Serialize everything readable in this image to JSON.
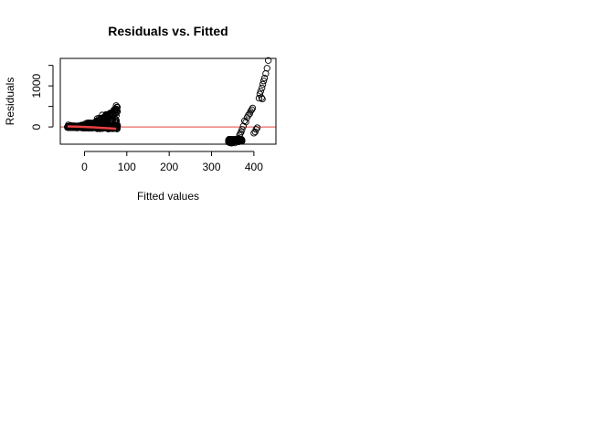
{
  "chart_data": {
    "type": "scatter",
    "title": "Residuals vs. Fitted",
    "xlabel": "Fitted values",
    "ylabel": "Residuals",
    "xlim": [
      -57,
      452
    ],
    "ylim": [
      -420,
      1670
    ],
    "x_ticks": [
      0,
      100,
      200,
      300,
      400
    ],
    "y_ticks": [
      0,
      1000
    ],
    "y_minor_ticks": [
      0,
      500,
      1000,
      1500
    ],
    "reference_line": {
      "y": 0,
      "color": "#e8403f"
    },
    "smooth_color": "#e8403f",
    "marker": "open-circle",
    "marker_color": "#000000",
    "grid": false,
    "clusters": [
      {
        "x_range": [
          -40,
          78
        ],
        "resid_center": 0,
        "resid_spread": 50,
        "upper_tail_max": 520,
        "count": 900
      },
      {
        "x_range": [
          340,
          372
        ],
        "resid_center": -330,
        "resid_spread": 40,
        "count": 260
      }
    ],
    "points": [
      [
        -38,
        50
      ],
      [
        -32,
        35
      ],
      [
        -25,
        30
      ],
      [
        -20,
        20
      ],
      [
        -10,
        25
      ],
      [
        0,
        30
      ],
      [
        10,
        50
      ],
      [
        20,
        80
      ],
      [
        30,
        120
      ],
      [
        38,
        200
      ],
      [
        42,
        290
      ],
      [
        50,
        130
      ],
      [
        58,
        200
      ],
      [
        62,
        260
      ],
      [
        65,
        300
      ],
      [
        68,
        370
      ],
      [
        70,
        420
      ],
      [
        72,
        350
      ],
      [
        75,
        520
      ],
      [
        78,
        380
      ],
      [
        340,
        -370
      ],
      [
        343,
        -385
      ],
      [
        347,
        -395
      ],
      [
        350,
        -380
      ],
      [
        352,
        -360
      ],
      [
        355,
        -390
      ],
      [
        358,
        -350
      ],
      [
        360,
        -300
      ],
      [
        362,
        -320
      ],
      [
        364,
        -280
      ],
      [
        366,
        -200
      ],
      [
        368,
        -160
      ],
      [
        370,
        -120
      ],
      [
        372,
        -60
      ],
      [
        375,
        20
      ],
      [
        378,
        150
      ],
      [
        381,
        120
      ],
      [
        384,
        230
      ],
      [
        387,
        290
      ],
      [
        390,
        320
      ],
      [
        392,
        380
      ],
      [
        395,
        420
      ],
      [
        397,
        460
      ],
      [
        400,
        -150
      ],
      [
        403,
        -120
      ],
      [
        405,
        -60
      ],
      [
        408,
        -20
      ],
      [
        412,
        700
      ],
      [
        414,
        800
      ],
      [
        416,
        870
      ],
      [
        419,
        950
      ],
      [
        421,
        1040
      ],
      [
        423,
        1120
      ],
      [
        425,
        1190
      ],
      [
        428,
        1300
      ],
      [
        431,
        1430
      ],
      [
        434,
        1620
      ],
      [
        420,
        680
      ],
      [
        418,
        710
      ]
    ],
    "smooth_line": [
      [
        -40,
        15
      ],
      [
        -20,
        8
      ],
      [
        0,
        0
      ],
      [
        20,
        -10
      ],
      [
        40,
        -22
      ],
      [
        60,
        -35
      ],
      [
        75,
        -45
      ]
    ]
  }
}
